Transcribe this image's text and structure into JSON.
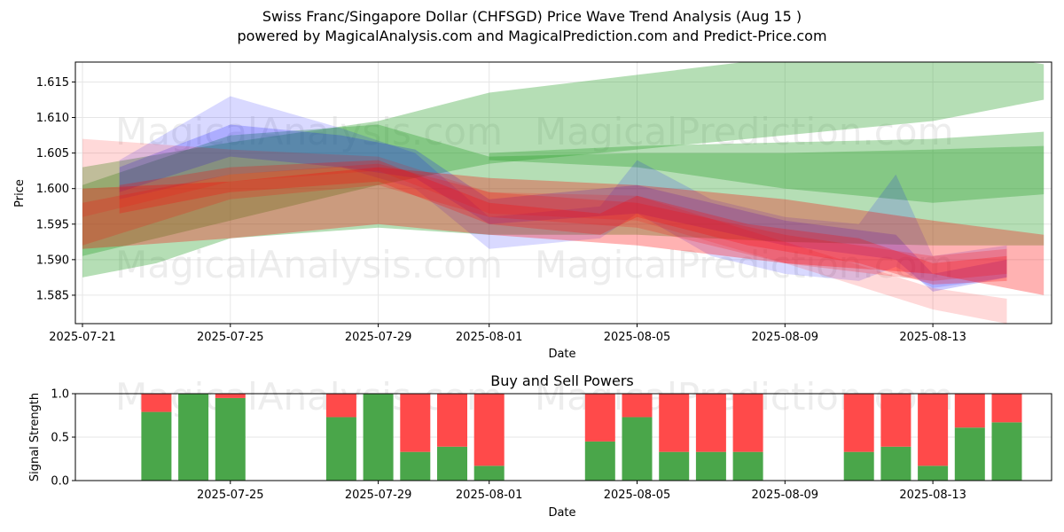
{
  "title_line1": "Swiss Franc/Singapore Dollar (CHFSGD) Price Wave Trend Analysis (Aug 15 )",
  "title_line2": "powered by MagicalAnalysis.com and MagicalPrediction.com and Predict-Price.com",
  "watermarks": [
    "MagicalAnalysis.com",
    "MagicalPrediction.com"
  ],
  "colors": {
    "green": "#2ca02c",
    "red": "#ff0000",
    "blue": "#0000ff",
    "buy": "#4aa64a",
    "sell": "#ff4a4a"
  },
  "chart_data": [
    {
      "type": "area",
      "title": "",
      "xlabel": "Date",
      "ylabel": "Price",
      "x_ticks": [
        "2025-07-21",
        "2025-07-25",
        "2025-07-29",
        "2025-08-01",
        "2025-08-05",
        "2025-08-09",
        "2025-08-13"
      ],
      "xlim": [
        "2025-07-20",
        "2025-08-17"
      ],
      "y_ticks": [
        1.585,
        1.59,
        1.595,
        1.6,
        1.605,
        1.61,
        1.615
      ],
      "ylim": [
        1.581,
        1.6178
      ],
      "grid": true,
      "series": [
        {
          "color": "green",
          "opacity": 0.35,
          "x": [
            "2025-07-21",
            "2025-07-23",
            "2025-07-25",
            "2025-07-29",
            "2025-08-01",
            "2025-08-05",
            "2025-08-09",
            "2025-08-13",
            "2025-08-16"
          ],
          "lower": [
            1.5875,
            1.5895,
            1.593,
            1.5945,
            1.5935,
            1.5935,
            1.5925,
            1.592,
            1.592
          ],
          "upper": [
            1.6005,
            1.604,
            1.6075,
            1.609,
            1.6045,
            1.605,
            1.605,
            1.6055,
            1.606
          ]
        },
        {
          "color": "green",
          "opacity": 0.35,
          "x": [
            "2025-07-21",
            "2025-07-25",
            "2025-07-29",
            "2025-08-01",
            "2025-08-05",
            "2025-08-09",
            "2025-08-13",
            "2025-08-16"
          ],
          "lower": [
            1.5905,
            1.5955,
            1.6005,
            1.6035,
            1.6055,
            1.6075,
            1.6095,
            1.6125
          ],
          "upper": [
            1.603,
            1.6065,
            1.6095,
            1.6135,
            1.616,
            1.6185,
            1.62,
            1.6175
          ]
        },
        {
          "color": "green",
          "opacity": 0.35,
          "x": [
            "2025-08-01",
            "2025-08-05",
            "2025-08-09",
            "2025-08-13",
            "2025-08-16"
          ],
          "lower": [
            1.604,
            1.603,
            1.6,
            1.598,
            1.5992
          ],
          "upper": [
            1.605,
            1.606,
            1.6065,
            1.607,
            1.608
          ]
        },
        {
          "color": "blue",
          "opacity": 0.15,
          "x": [
            "2025-07-22",
            "2025-07-25",
            "2025-07-28",
            "2025-07-30",
            "2025-08-01",
            "2025-08-04",
            "2025-08-05",
            "2025-08-07",
            "2025-08-09",
            "2025-08-11",
            "2025-08-12",
            "2025-08-13",
            "2025-08-15"
          ],
          "lower": [
            1.5985,
            1.602,
            1.603,
            1.6,
            1.5915,
            1.593,
            1.5965,
            1.5905,
            1.588,
            1.587,
            1.589,
            1.586,
            1.5875
          ],
          "upper": [
            1.604,
            1.613,
            1.6085,
            1.605,
            1.596,
            1.5975,
            1.604,
            1.5985,
            1.596,
            1.595,
            1.602,
            1.5905,
            1.592
          ]
        },
        {
          "color": "blue",
          "opacity": 0.2,
          "x": [
            "2025-07-22",
            "2025-07-25",
            "2025-07-28",
            "2025-07-30",
            "2025-08-01",
            "2025-08-05",
            "2025-08-09",
            "2025-08-12",
            "2025-08-13",
            "2025-08-15"
          ],
          "lower": [
            1.5995,
            1.6045,
            1.603,
            1.6015,
            1.595,
            1.5965,
            1.592,
            1.59,
            1.5855,
            1.5875
          ],
          "upper": [
            1.603,
            1.609,
            1.6075,
            1.6055,
            1.5985,
            1.6005,
            1.5955,
            1.5935,
            1.588,
            1.59
          ]
        },
        {
          "color": "red",
          "opacity": 0.15,
          "x": [
            "2025-07-21",
            "2025-07-25",
            "2025-07-29",
            "2025-08-01",
            "2025-08-05",
            "2025-08-09",
            "2025-08-13",
            "2025-08-15"
          ],
          "lower": [
            1.596,
            1.601,
            1.6025,
            1.5965,
            1.5955,
            1.5895,
            1.583,
            1.581
          ],
          "upper": [
            1.607,
            1.6055,
            1.6045,
            1.5995,
            1.599,
            1.5925,
            1.586,
            1.5845
          ]
        },
        {
          "color": "red",
          "opacity": 0.3,
          "x": [
            "2025-07-21",
            "2025-07-25",
            "2025-07-29",
            "2025-08-01",
            "2025-08-05",
            "2025-08-09",
            "2025-08-13",
            "2025-08-16"
          ],
          "lower": [
            1.5915,
            1.593,
            1.595,
            1.5935,
            1.592,
            1.5895,
            1.588,
            1.585
          ],
          "upper": [
            1.6,
            1.601,
            1.603,
            1.6015,
            1.6005,
            1.5985,
            1.5955,
            1.5935
          ]
        },
        {
          "color": "red",
          "opacity": 0.25,
          "x": [
            "2025-07-22",
            "2025-07-25",
            "2025-07-29",
            "2025-08-01",
            "2025-08-04",
            "2025-08-05",
            "2025-08-08",
            "2025-08-11",
            "2025-08-13",
            "2025-08-15"
          ],
          "lower": [
            1.5965,
            1.5995,
            1.601,
            1.595,
            1.5935,
            1.596,
            1.592,
            1.5895,
            1.5865,
            1.587
          ],
          "upper": [
            1.6005,
            1.603,
            1.604,
            1.598,
            1.5965,
            1.599,
            1.595,
            1.593,
            1.5895,
            1.5905
          ]
        },
        {
          "color": "red",
          "opacity": 0.2,
          "x": [
            "2025-07-21",
            "2025-07-25",
            "2025-07-29",
            "2025-08-01",
            "2025-08-05",
            "2025-08-09",
            "2025-08-13",
            "2025-08-15"
          ],
          "lower": [
            1.592,
            1.5985,
            1.6005,
            1.596,
            1.5945,
            1.5895,
            1.587,
            1.588
          ],
          "upper": [
            1.598,
            1.602,
            1.6035,
            1.5995,
            1.598,
            1.5935,
            1.5905,
            1.5915
          ]
        }
      ]
    },
    {
      "type": "bar",
      "title": "Buy and Sell Powers",
      "xlabel": "Date",
      "ylabel": "Signal Strength",
      "ylim": [
        0,
        1
      ],
      "y_ticks": [
        0.0,
        0.5,
        1.0
      ],
      "x_ticks": [
        "2025-07-25",
        "2025-07-29",
        "2025-08-01",
        "2025-08-05",
        "2025-08-09",
        "2025-08-13"
      ],
      "grid": true,
      "dates": [
        "2025-07-23",
        "2025-07-24",
        "2025-07-25",
        "2025-07-28",
        "2025-07-29",
        "2025-07-30",
        "2025-07-31",
        "2025-08-01",
        "2025-08-04",
        "2025-08-05",
        "2025-08-06",
        "2025-08-07",
        "2025-08-08",
        "2025-08-11",
        "2025-08-12",
        "2025-08-13",
        "2025-08-14",
        "2025-08-15"
      ],
      "series": [
        {
          "name": "Buy",
          "values": [
            0.79,
            1.0,
            0.95,
            0.73,
            1.0,
            0.33,
            0.39,
            0.17,
            0.45,
            0.73,
            0.33,
            0.33,
            0.33,
            0.33,
            0.39,
            0.17,
            0.61,
            0.67
          ]
        },
        {
          "name": "Sell",
          "values": [
            0.21,
            0.0,
            0.05,
            0.27,
            0.0,
            0.67,
            0.61,
            0.83,
            0.55,
            0.27,
            0.67,
            0.67,
            0.67,
            0.67,
            0.61,
            0.83,
            0.39,
            0.33
          ]
        }
      ]
    }
  ]
}
